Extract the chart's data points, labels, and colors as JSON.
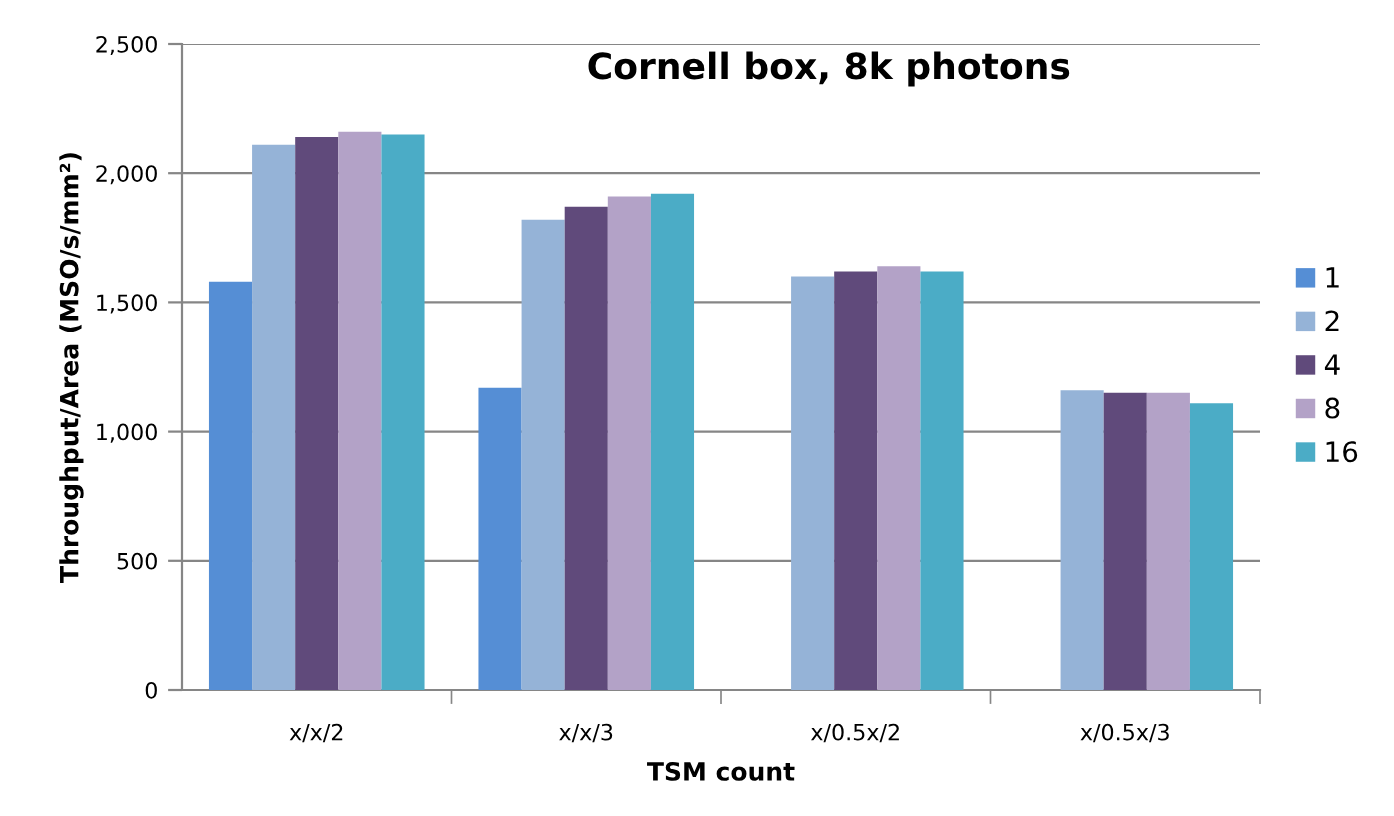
{
  "chart_data": {
    "type": "bar",
    "title": "Cornell box, 8k photons",
    "xlabel": "TSM count",
    "ylabel": "Throughput/Area (MSO/s/mm²)",
    "categories": [
      "x/x/2",
      "x/x/3",
      "x/0.5x/2",
      "x/0.5x/3"
    ],
    "series": [
      {
        "name": "1",
        "color": "#558ed5",
        "values": [
          1580,
          1170,
          null,
          null
        ]
      },
      {
        "name": "2",
        "color": "#95b3d7",
        "values": [
          2110,
          1820,
          1600,
          1160
        ]
      },
      {
        "name": "4",
        "color": "#604a7b",
        "values": [
          2140,
          1870,
          1620,
          1150
        ]
      },
      {
        "name": "8",
        "color": "#b3a2c7",
        "values": [
          2160,
          1910,
          1640,
          1150
        ]
      },
      {
        "name": "16",
        "color": "#4bacc6",
        "values": [
          2150,
          1920,
          1620,
          1110
        ]
      }
    ],
    "ylim": [
      0,
      2500
    ],
    "yticks": [
      {
        "value": 0,
        "label": "0"
      },
      {
        "value": 500,
        "label": "500"
      },
      {
        "value": 1000,
        "label": "1,000"
      },
      {
        "value": 1500,
        "label": "1,500"
      },
      {
        "value": 2000,
        "label": "2,000"
      },
      {
        "value": 2500,
        "label": "2,500"
      }
    ],
    "grid": "y",
    "legend": "right"
  }
}
